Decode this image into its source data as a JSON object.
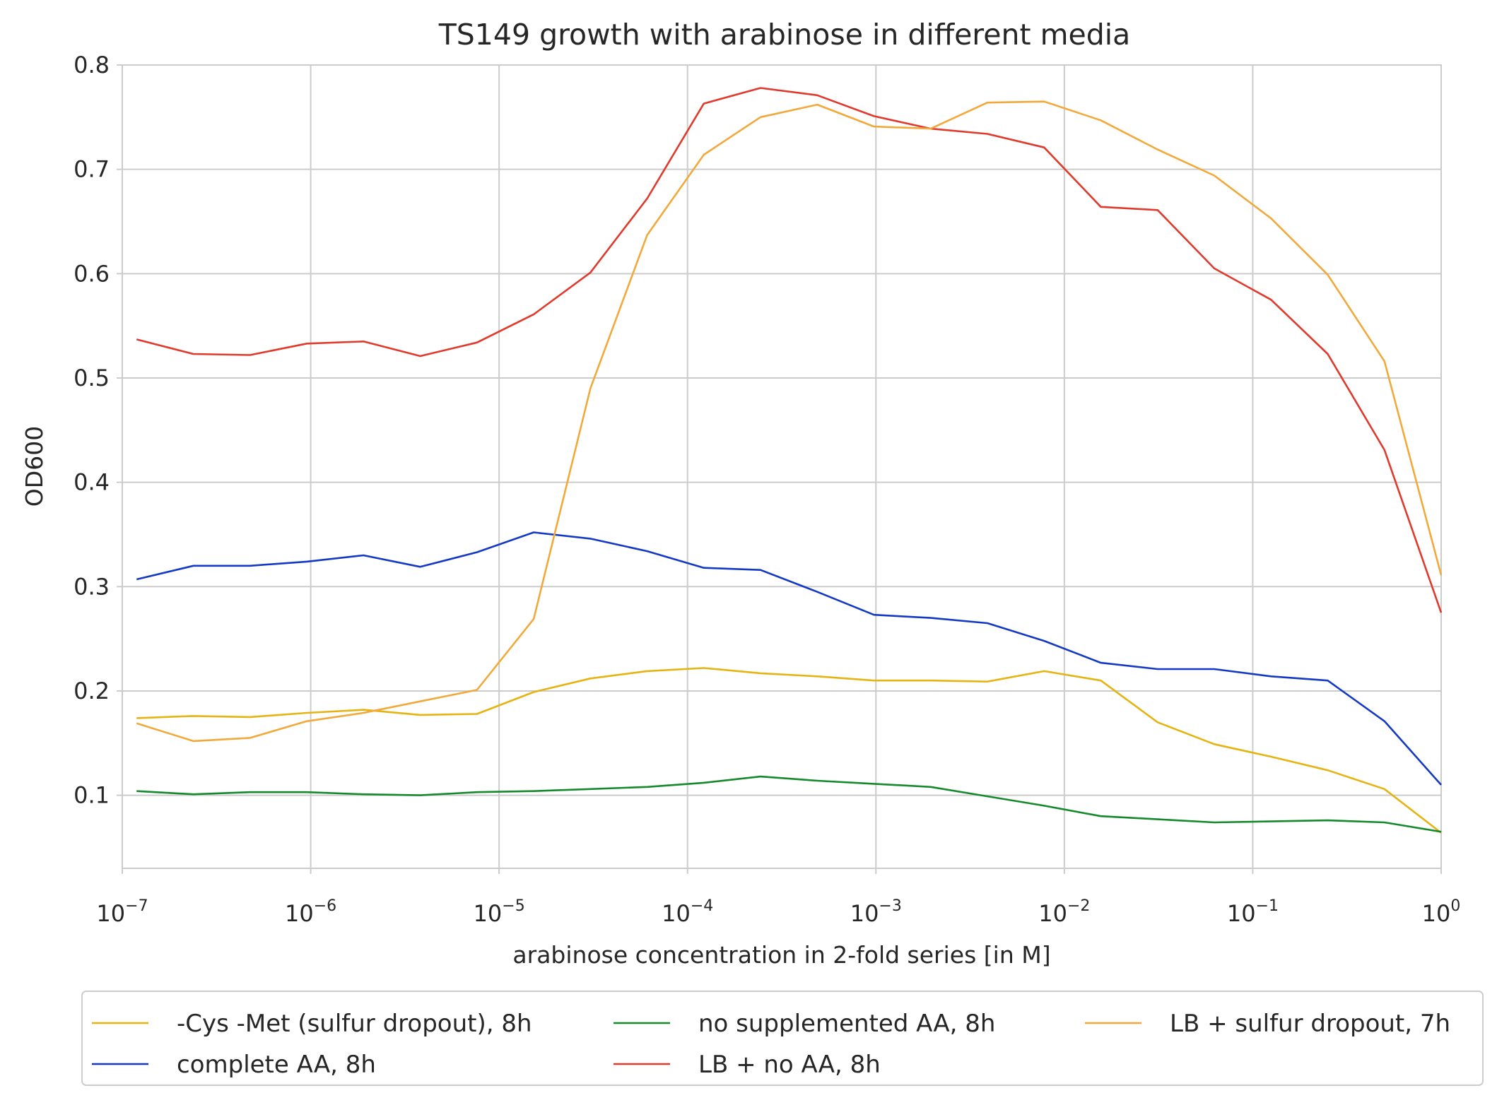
{
  "chart_data": {
    "type": "line",
    "title": "TS149 growth with arabinose in different media",
    "xlabel": "arabinose concentration in 2-fold series [in M]",
    "ylabel": "OD600",
    "xscale": "log",
    "xlim": [
      1e-07,
      1
    ],
    "ylim": [
      0.03,
      0.8
    ],
    "grid": true,
    "legend_position": "below plot",
    "x_ticks": [
      {
        "base": "10",
        "exp": "−7",
        "value": 1e-07
      },
      {
        "base": "10",
        "exp": "−6",
        "value": 1e-06
      },
      {
        "base": "10",
        "exp": "−5",
        "value": 1e-05
      },
      {
        "base": "10",
        "exp": "−4",
        "value": 0.0001
      },
      {
        "base": "10",
        "exp": "−3",
        "value": 0.001
      },
      {
        "base": "10",
        "exp": "−2",
        "value": 0.01
      },
      {
        "base": "10",
        "exp": "−1",
        "value": 0.1
      },
      {
        "base": "10",
        "exp": "0",
        "value": 1
      }
    ],
    "y_ticks": [
      {
        "label": "0.1",
        "value": 0.1
      },
      {
        "label": "0.2",
        "value": 0.2
      },
      {
        "label": "0.3",
        "value": 0.3
      },
      {
        "label": "0.4",
        "value": 0.4
      },
      {
        "label": "0.5",
        "value": 0.5
      },
      {
        "label": "0.6",
        "value": 0.6
      },
      {
        "label": "0.7",
        "value": 0.7
      },
      {
        "label": "0.8",
        "value": 0.8
      }
    ],
    "x": [
      1.1921e-07,
      2.3842e-07,
      4.7684e-07,
      9.5367e-07,
      1.9073e-06,
      3.8147e-06,
      7.6294e-06,
      1.5259e-05,
      3.0518e-05,
      6.1035e-05,
      0.00012207,
      0.00024414,
      0.00048828,
      0.00097656,
      0.0019531,
      0.0039063,
      0.0078125,
      0.015625,
      0.03125,
      0.0625,
      0.125,
      0.25,
      0.5,
      1.0
    ],
    "series": [
      {
        "name": "-Cys -Met (sulfur dropout), 8h",
        "color": "#e6b412",
        "values": [
          0.174,
          0.176,
          0.175,
          0.179,
          0.182,
          0.177,
          0.178,
          0.199,
          0.212,
          0.219,
          0.222,
          0.217,
          0.214,
          0.21,
          0.21,
          0.209,
          0.219,
          0.21,
          0.17,
          0.149,
          0.137,
          0.124,
          0.106,
          0.064
        ]
      },
      {
        "name": "complete AA, 8h",
        "color": "#1439c4",
        "values": [
          0.307,
          0.32,
          0.32,
          0.324,
          0.33,
          0.319,
          0.333,
          0.352,
          0.346,
          0.334,
          0.318,
          0.316,
          0.295,
          0.273,
          0.27,
          0.265,
          0.248,
          0.227,
          0.221,
          0.221,
          0.214,
          0.21,
          0.171,
          0.11
        ]
      },
      {
        "name": "no supplemented AA, 8h",
        "color": "#158a2c",
        "values": [
          0.104,
          0.101,
          0.103,
          0.103,
          0.101,
          0.1,
          0.103,
          0.104,
          0.106,
          0.108,
          0.112,
          0.118,
          0.114,
          0.111,
          0.108,
          0.099,
          0.09,
          0.08,
          0.077,
          0.074,
          0.075,
          0.076,
          0.074,
          0.065
        ]
      },
      {
        "name": "LB + no AA, 8h",
        "color": "#e03a2c",
        "values": [
          0.537,
          0.523,
          0.522,
          0.533,
          0.535,
          0.521,
          0.534,
          0.561,
          0.601,
          0.672,
          0.763,
          0.778,
          0.771,
          0.751,
          0.739,
          0.734,
          0.721,
          0.664,
          0.661,
          0.605,
          0.575,
          0.523,
          0.431,
          0.275
        ]
      },
      {
        "name": "LB + sulfur dropout, 7h",
        "color": "#f2a93b",
        "values": [
          0.169,
          0.152,
          0.155,
          0.171,
          0.179,
          0.19,
          0.201,
          0.269,
          0.49,
          0.637,
          0.714,
          0.75,
          0.762,
          0.741,
          0.739,
          0.764,
          0.765,
          0.747,
          0.719,
          0.694,
          0.653,
          0.599,
          0.516,
          0.311
        ]
      }
    ]
  }
}
